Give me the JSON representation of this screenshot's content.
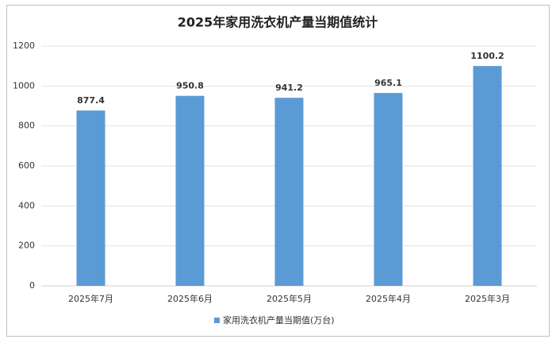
{
  "chart_data": {
    "type": "bar",
    "title": "2025年家用洗衣机产量当期值统计",
    "categories": [
      "2025年7月",
      "2025年6月",
      "2025年5月",
      "2025年4月",
      "2025年3月"
    ],
    "series": [
      {
        "name": "家用洗衣机产量当期值(万台)",
        "color": "#5b9bd5",
        "values": [
          877.4,
          950.8,
          941.2,
          965.1,
          1100.2
        ]
      }
    ],
    "ylim": [
      0,
      1200
    ],
    "yticks": [
      0,
      200,
      400,
      600,
      800,
      1000,
      1200
    ],
    "grid": true,
    "legend": "bottom"
  }
}
